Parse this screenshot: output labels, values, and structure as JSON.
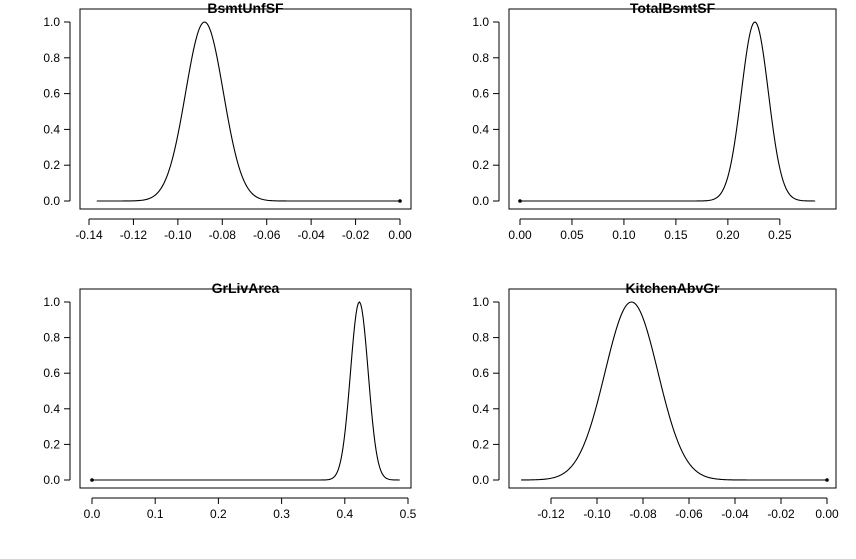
{
  "chart_data": [
    {
      "type": "line",
      "title": "BsmtUnfSF",
      "xlim": [
        -0.14,
        0.0
      ],
      "ylim": [
        0.0,
        1.0
      ],
      "x_ticks": [
        -0.14,
        -0.12,
        -0.1,
        -0.08,
        -0.06,
        -0.04,
        -0.02,
        0.0
      ],
      "x_tick_labels": [
        "-0.14",
        "-0.12",
        "-0.10",
        "-0.08",
        "-0.06",
        "-0.04",
        "-0.02",
        "0.00"
      ],
      "y_ticks": [
        0.0,
        0.2,
        0.4,
        0.6,
        0.8,
        1.0
      ],
      "y_tick_labels": [
        "0.0",
        "0.2",
        "0.4",
        "0.6",
        "0.8",
        "1.0"
      ],
      "curve": {
        "shape": "gaussian",
        "peak_x": -0.088,
        "peak_y": 1.0,
        "sd": 0.0085,
        "x_range": [
          -0.1365,
          0.0
        ]
      },
      "point": {
        "x": 0.0,
        "y": 0.0
      }
    },
    {
      "type": "line",
      "title": "TotalBsmtSF",
      "xlim": [
        0.0,
        0.28
      ],
      "ylim": [
        0.0,
        1.0
      ],
      "x_ticks": [
        0.0,
        0.05,
        0.1,
        0.15,
        0.2,
        0.25
      ],
      "x_tick_labels": [
        "0.00",
        "0.05",
        "0.10",
        "0.15",
        "0.20",
        "0.25"
      ],
      "y_ticks": [
        0.0,
        0.2,
        0.4,
        0.6,
        0.8,
        1.0
      ],
      "y_tick_labels": [
        "0.0",
        "0.2",
        "0.4",
        "0.6",
        "0.8",
        "1.0"
      ],
      "curve": {
        "shape": "gaussian",
        "peak_x": 0.226,
        "peak_y": 1.0,
        "sd": 0.013,
        "x_range": [
          0.0,
          0.284
        ]
      },
      "point": {
        "x": 0.0,
        "y": 0.0
      }
    },
    {
      "type": "line",
      "title": "GrLivArea",
      "xlim": [
        0.0,
        0.5
      ],
      "ylim": [
        0.0,
        1.0
      ],
      "x_ticks": [
        0.0,
        0.1,
        0.2,
        0.3,
        0.4,
        0.5
      ],
      "x_tick_labels": [
        "0.0",
        "0.1",
        "0.2",
        "0.3",
        "0.4",
        "0.5"
      ],
      "y_ticks": [
        0.0,
        0.2,
        0.4,
        0.6,
        0.8,
        1.0
      ],
      "y_tick_labels": [
        "0.0",
        "0.2",
        "0.4",
        "0.6",
        "0.8",
        "1.0"
      ],
      "curve": {
        "shape": "gaussian",
        "peak_x": 0.423,
        "peak_y": 1.0,
        "sd": 0.014,
        "x_range": [
          0.0,
          0.487
        ]
      },
      "point": {
        "x": 0.0,
        "y": 0.0
      }
    },
    {
      "type": "line",
      "title": "KitchenAbvGr",
      "xlim": [
        -0.12,
        0.0
      ],
      "ylim": [
        0.0,
        1.0
      ],
      "x_ticks": [
        -0.12,
        -0.1,
        -0.08,
        -0.06,
        -0.04,
        -0.02,
        0.0
      ],
      "x_tick_labels": [
        "-0.12",
        "-0.10",
        "-0.08",
        "-0.06",
        "-0.04",
        "-0.02",
        "0.00"
      ],
      "y_ticks": [
        0.0,
        0.2,
        0.4,
        0.6,
        0.8,
        1.0
      ],
      "y_tick_labels": [
        "0.0",
        "0.2",
        "0.4",
        "0.6",
        "0.8",
        "1.0"
      ],
      "curve": {
        "shape": "gaussian",
        "peak_x": -0.085,
        "peak_y": 1.0,
        "sd": 0.0115,
        "x_range": [
          -0.133,
          0.0
        ]
      },
      "point": {
        "x": 0.0,
        "y": 0.0
      }
    }
  ]
}
